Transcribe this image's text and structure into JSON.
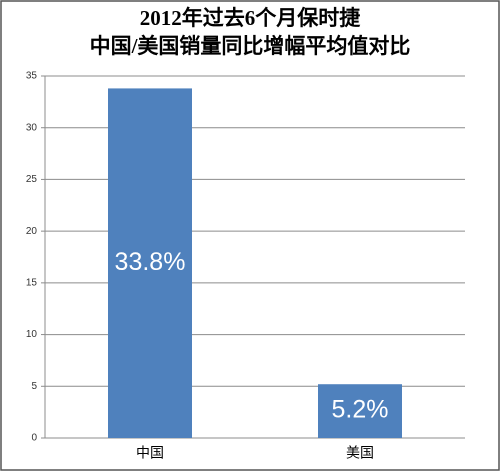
{
  "chart_data": {
    "type": "bar",
    "title": "2012年过去6个月保时捷",
    "subtitle": "中国/美国销量同比增幅平均值对比",
    "categories": [
      "中国",
      "美国"
    ],
    "values": [
      33.8,
      5.2
    ],
    "value_labels": [
      "33.8%",
      "5.2%"
    ],
    "color": "#4f81bd",
    "ylim": [
      0,
      35
    ],
    "yticks": [
      0,
      5,
      10,
      15,
      20,
      25,
      30,
      35
    ],
    "grid": true
  }
}
